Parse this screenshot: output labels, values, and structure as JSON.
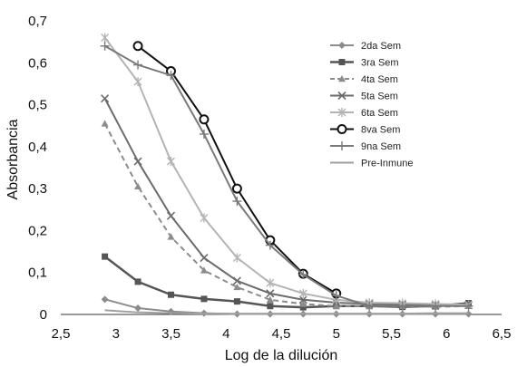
{
  "chart_data": {
    "type": "line",
    "title": "",
    "xlabel": "Log de la dilución",
    "ylabel": "Absorbancia",
    "xlim": [
      2.5,
      6.5
    ],
    "ylim": [
      0,
      0.7
    ],
    "xticks": [
      2.5,
      3,
      3.5,
      4,
      4.5,
      5,
      5.5,
      6,
      6.5
    ],
    "yticks": [
      0,
      0.1,
      0.2,
      0.3,
      0.4,
      0.5,
      0.6,
      0.7
    ],
    "xtick_labels": [
      "2,5",
      "3",
      "3,5",
      "4",
      "4,5",
      "5",
      "5,5",
      "6",
      "6,5"
    ],
    "ytick_labels": [
      "0",
      "0,1",
      "0,2",
      "0,3",
      "0,4",
      "0,5",
      "0,6",
      "0,7"
    ],
    "grid": false,
    "legend_position": "right",
    "series": [
      {
        "name": "2da Sem",
        "color": "#8c8c8c",
        "width": 2,
        "dash": "",
        "marker": "diamond",
        "x": [
          2.9,
          3.2,
          3.5,
          3.8,
          4.1,
          4.4,
          4.7,
          5.0,
          5.3,
          5.6,
          5.9,
          6.2
        ],
        "y": [
          0.036,
          0.015,
          0.007,
          0.003,
          0.001,
          0.001,
          0.001,
          0.001,
          0.001,
          0.001,
          0.001,
          0.001
        ]
      },
      {
        "name": "3ra Sem",
        "color": "#555555",
        "width": 2.5,
        "dash": "",
        "marker": "square",
        "x": [
          2.9,
          3.2,
          3.5,
          3.8,
          4.1,
          4.4,
          4.7,
          5.0,
          5.3,
          5.6,
          5.9,
          6.2
        ],
        "y": [
          0.138,
          0.078,
          0.047,
          0.037,
          0.031,
          0.02,
          0.017,
          0.02,
          0.02,
          0.018,
          0.02,
          0.027
        ]
      },
      {
        "name": "4ta Sem",
        "color": "#8c8c8c",
        "width": 2,
        "dash": "6,4",
        "marker": "triangle",
        "x": [
          2.9,
          3.2,
          3.5,
          3.8,
          4.1,
          4.4,
          4.7,
          5.0,
          5.3,
          5.6,
          5.9,
          6.2
        ],
        "y": [
          0.455,
          0.305,
          0.185,
          0.105,
          0.065,
          0.035,
          0.025,
          0.02,
          0.02,
          0.02,
          0.018,
          0.02
        ]
      },
      {
        "name": "5ta Sem",
        "color": "#6b6b6b",
        "width": 2,
        "dash": "",
        "marker": "x",
        "x": [
          2.9,
          3.2,
          3.5,
          3.8,
          4.1,
          4.4,
          4.7,
          5.0,
          5.3,
          5.6,
          5.9,
          6.2
        ],
        "y": [
          0.515,
          0.365,
          0.235,
          0.135,
          0.08,
          0.05,
          0.035,
          0.028,
          0.025,
          0.023,
          0.022,
          0.022
        ]
      },
      {
        "name": "6ta Sem",
        "color": "#b4b4b4",
        "width": 2,
        "dash": "",
        "marker": "star",
        "x": [
          2.9,
          3.2,
          3.5,
          3.8,
          4.1,
          4.4,
          4.7,
          5.0,
          5.3,
          5.6,
          5.9,
          6.2
        ],
        "y": [
          0.66,
          0.555,
          0.365,
          0.23,
          0.135,
          0.075,
          0.05,
          0.035,
          0.028,
          0.027,
          0.025,
          0.023
        ]
      },
      {
        "name": "8va Sem",
        "color": "#111111",
        "width": 2,
        "dash": "",
        "marker": "circle",
        "x": [
          3.2,
          3.5,
          3.8,
          4.1,
          4.4,
          4.7,
          5.0
        ],
        "y": [
          0.64,
          0.58,
          0.465,
          0.3,
          0.177,
          0.097,
          0.05
        ]
      },
      {
        "name": "9na Sem",
        "color": "#7a7a7a",
        "width": 2,
        "dash": "",
        "marker": "plus",
        "x": [
          2.9,
          3.2,
          3.5,
          3.8,
          4.1,
          4.4,
          4.7,
          5.0,
          5.3,
          5.6,
          5.9,
          6.2
        ],
        "y": [
          0.64,
          0.595,
          0.57,
          0.43,
          0.27,
          0.165,
          0.095,
          0.045,
          0.02,
          0.02,
          0.02,
          0.02
        ]
      },
      {
        "name": "Pre-Inmune",
        "color": "#a0a0a0",
        "width": 2,
        "dash": "",
        "marker": "none",
        "x": [
          2.9,
          3.2,
          3.5,
          3.8,
          4.1,
          4.4,
          4.7,
          5.0,
          5.3,
          5.6,
          5.9,
          6.2
        ],
        "y": [
          0.01,
          0.005,
          0.003,
          0.002,
          0.002,
          0.002,
          0.002,
          0.002,
          0.002,
          0.002,
          0.003,
          0.003
        ]
      }
    ]
  }
}
